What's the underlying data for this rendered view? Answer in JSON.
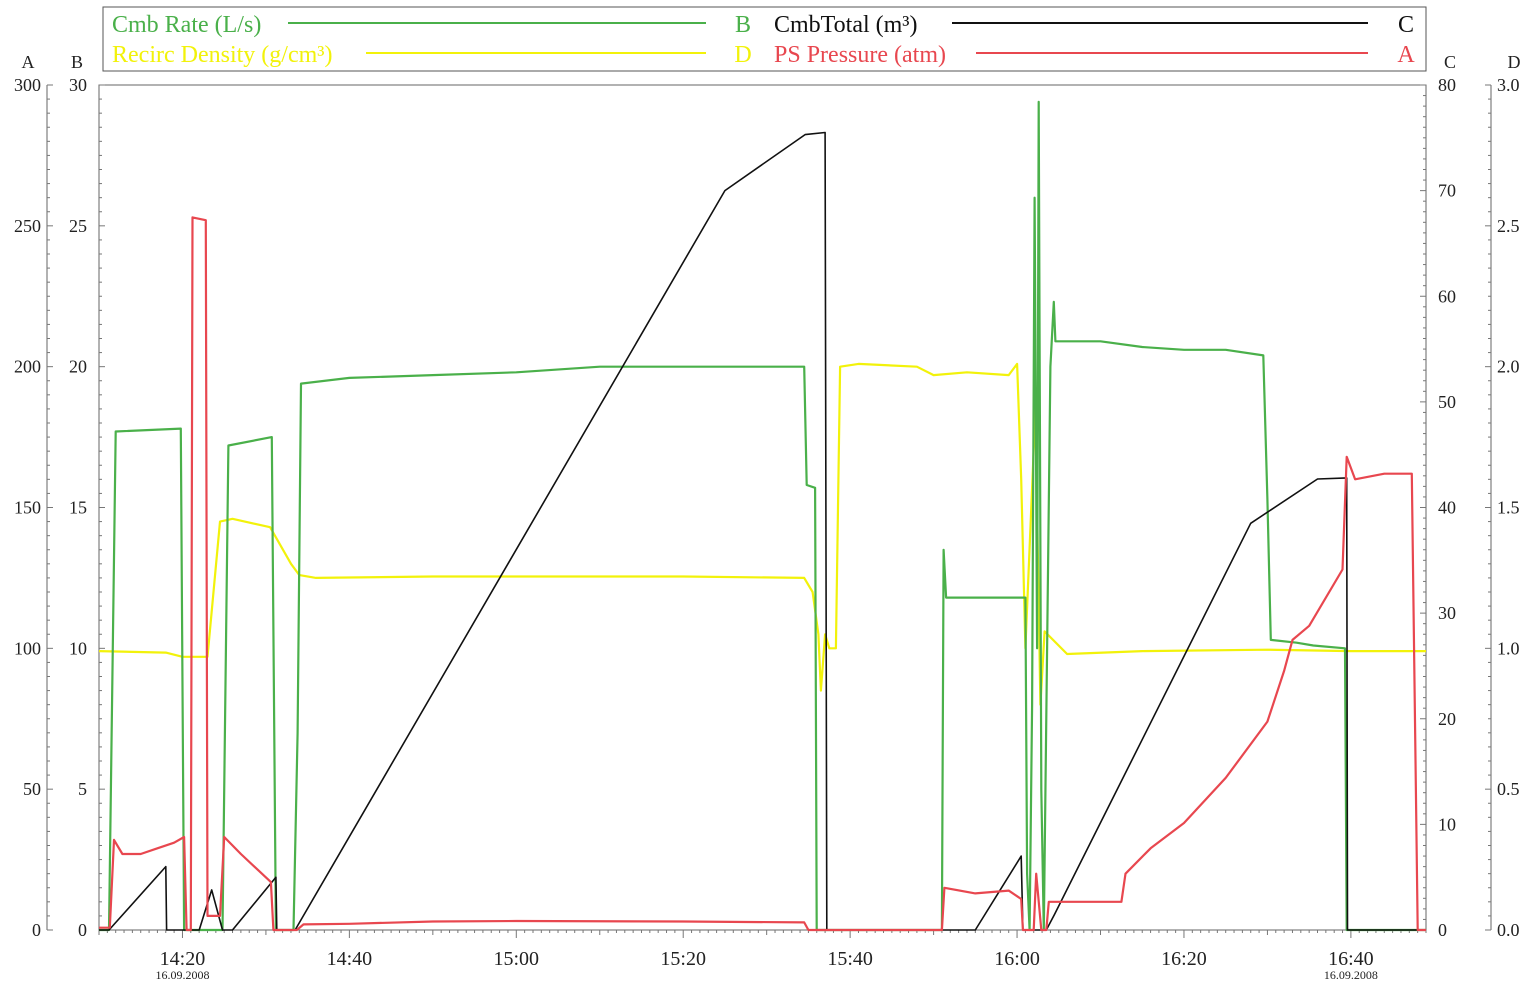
{
  "chart_data": {
    "type": "line",
    "legend": {
      "placement": "top",
      "entries": [
        {
          "label": "Cmb Rate (L/s)",
          "axis": "B",
          "color": "#4ab04a"
        },
        {
          "label": "CmbTotal  (m³)",
          "axis": "C",
          "color": "#111111"
        },
        {
          "label": "Recirc Density (g/cm³)",
          "axis": "D",
          "color": "#f2f20a"
        },
        {
          "label": "PS Pressure (atm)",
          "axis": "A",
          "color": "#e8474f"
        }
      ]
    },
    "axes": {
      "A": {
        "letter": "A",
        "side": "left-outer",
        "range": [
          0,
          300
        ],
        "ticks": [
          "0",
          "50",
          "100",
          "150",
          "200",
          "250",
          "300"
        ]
      },
      "B": {
        "letter": "B",
        "side": "left-inner",
        "range": [
          0,
          30
        ],
        "ticks": [
          "0",
          "5",
          "10",
          "15",
          "20",
          "25",
          "30"
        ]
      },
      "C": {
        "letter": "C",
        "side": "right-inner",
        "range": [
          0,
          80
        ],
        "ticks": [
          "0",
          "10",
          "20",
          "30",
          "40",
          "50",
          "60",
          "70",
          "80"
        ]
      },
      "D": {
        "letter": "D",
        "side": "right-outer",
        "range": [
          0,
          3
        ],
        "ticks": [
          "0.0",
          "0.5",
          "1.0",
          "1.5",
          "2.0",
          "2.5",
          "3.0"
        ]
      }
    },
    "x_axis": {
      "range_minutes": [
        850,
        1009
      ],
      "ticks": [
        {
          "t": 860,
          "label": "14:20",
          "date": "16.09.2008"
        },
        {
          "t": 880,
          "label": "14:40"
        },
        {
          "t": 900,
          "label": "15:00"
        },
        {
          "t": 920,
          "label": "15:20"
        },
        {
          "t": 940,
          "label": "15:40"
        },
        {
          "t": 960,
          "label": "16:00"
        },
        {
          "t": 980,
          "label": "16:20"
        },
        {
          "t": 1000,
          "label": "16:40",
          "date": "16.09.2008"
        }
      ]
    },
    "grid": false,
    "series": [
      {
        "name": "Cmb Rate (L/s)",
        "axis": "B",
        "color": "#4ab04a",
        "points": [
          [
            850,
            0
          ],
          [
            851.2,
            0
          ],
          [
            852,
            17.7
          ],
          [
            859.8,
            17.8
          ],
          [
            860.2,
            0
          ],
          [
            864.8,
            0
          ],
          [
            865.5,
            17.2
          ],
          [
            870.7,
            17.5
          ],
          [
            871.2,
            0
          ],
          [
            873.3,
            0
          ],
          [
            873.8,
            7
          ],
          [
            874.2,
            19.4
          ],
          [
            880,
            19.6
          ],
          [
            890,
            19.7
          ],
          [
            900,
            19.8
          ],
          [
            910,
            20
          ],
          [
            920,
            20
          ],
          [
            934.5,
            20
          ],
          [
            934.8,
            15.8
          ],
          [
            935.8,
            15.7
          ],
          [
            936,
            0
          ],
          [
            951,
            0
          ],
          [
            951.2,
            13.5
          ],
          [
            951.5,
            11.8
          ],
          [
            961,
            11.8
          ],
          [
            961.2,
            2
          ],
          [
            961.5,
            0
          ],
          [
            961.8,
            8
          ],
          [
            962.1,
            26
          ],
          [
            962.4,
            10
          ],
          [
            962.6,
            29.4
          ],
          [
            962.9,
            5
          ],
          [
            963.2,
            0
          ],
          [
            964,
            20
          ],
          [
            964.4,
            22.3
          ],
          [
            964.6,
            20.9
          ],
          [
            970,
            20.9
          ],
          [
            975,
            20.7
          ],
          [
            980,
            20.6
          ],
          [
            985,
            20.6
          ],
          [
            989.5,
            20.4
          ],
          [
            990,
            15.3
          ],
          [
            990.4,
            10.3
          ],
          [
            993.5,
            10.2
          ],
          [
            995.5,
            10.1
          ],
          [
            999.3,
            10
          ],
          [
            999.5,
            0
          ],
          [
            1009,
            0
          ]
        ]
      },
      {
        "name": "CmbTotal  (m³)",
        "axis": "C",
        "color": "#111111",
        "points": [
          [
            850,
            0
          ],
          [
            851.2,
            0
          ],
          [
            858,
            6
          ],
          [
            858.1,
            0
          ],
          [
            862,
            0
          ],
          [
            863.5,
            3.8
          ],
          [
            864.8,
            0
          ],
          [
            866,
            0
          ],
          [
            871.2,
            5
          ],
          [
            871.3,
            0
          ],
          [
            873.5,
            0
          ],
          [
            925,
            70
          ],
          [
            934.6,
            75.3
          ],
          [
            937,
            75.5
          ],
          [
            937.2,
            0
          ],
          [
            955,
            0
          ],
          [
            960.5,
            7
          ],
          [
            960.7,
            0
          ],
          [
            962.5,
            0
          ],
          [
            963.5,
            0
          ],
          [
            964.5,
            1.5
          ],
          [
            988,
            38.5
          ],
          [
            996,
            42.7
          ],
          [
            999.5,
            42.8
          ],
          [
            999.6,
            0
          ],
          [
            1009,
            0
          ]
        ]
      },
      {
        "name": "Recirc Density (g/cm³)",
        "axis": "D",
        "color": "#f2f20a",
        "points": [
          [
            850,
            0.99
          ],
          [
            858,
            0.985
          ],
          [
            860,
            0.97
          ],
          [
            863,
            0.97
          ],
          [
            864.5,
            1.45
          ],
          [
            866,
            1.46
          ],
          [
            870.5,
            1.43
          ],
          [
            873,
            1.3
          ],
          [
            874,
            1.26
          ],
          [
            876,
            1.25
          ],
          [
            890,
            1.255
          ],
          [
            900,
            1.255
          ],
          [
            920,
            1.255
          ],
          [
            934.5,
            1.25
          ],
          [
            935.5,
            1.2
          ],
          [
            936.2,
            1.05
          ],
          [
            936.5,
            0.85
          ],
          [
            937,
            1.05
          ],
          [
            937.5,
            1.0
          ],
          [
            938.3,
            1.0
          ],
          [
            938.8,
            2.0
          ],
          [
            941,
            2.01
          ],
          [
            948,
            2.0
          ],
          [
            950,
            1.97
          ],
          [
            954,
            1.98
          ],
          [
            959,
            1.97
          ],
          [
            960,
            2.01
          ],
          [
            960.5,
            1.6
          ],
          [
            961,
            1.0
          ],
          [
            962.2,
            1.85
          ],
          [
            962.8,
            0.8
          ],
          [
            963.3,
            1.06
          ],
          [
            966,
            0.98
          ],
          [
            975,
            0.99
          ],
          [
            990,
            0.995
          ],
          [
            1000,
            0.99
          ],
          [
            1009,
            0.99
          ]
        ]
      },
      {
        "name": "PS Pressure (atm)",
        "axis": "A",
        "color": "#e8474f",
        "points": [
          [
            850,
            0.8
          ],
          [
            851.3,
            0.8
          ],
          [
            851.8,
            32
          ],
          [
            852.8,
            27
          ],
          [
            855,
            27
          ],
          [
            857,
            29
          ],
          [
            859,
            31
          ],
          [
            860.2,
            33
          ],
          [
            860.5,
            0
          ],
          [
            861,
            0
          ],
          [
            861.2,
            253
          ],
          [
            862.8,
            252
          ],
          [
            863,
            5
          ],
          [
            864.5,
            5
          ],
          [
            865,
            33
          ],
          [
            867,
            27
          ],
          [
            870.6,
            17
          ],
          [
            870.9,
            0
          ],
          [
            873.7,
            0
          ],
          [
            874.5,
            2
          ],
          [
            880,
            2.2
          ],
          [
            890,
            3
          ],
          [
            900,
            3.2
          ],
          [
            920,
            3
          ],
          [
            934.5,
            2.7
          ],
          [
            935,
            0
          ],
          [
            951,
            0
          ],
          [
            951.3,
            15
          ],
          [
            955,
            13
          ],
          [
            959,
            14
          ],
          [
            960.5,
            11
          ],
          [
            960.7,
            0
          ],
          [
            962,
            0
          ],
          [
            962.3,
            20
          ],
          [
            962.9,
            0
          ],
          [
            963.5,
            0
          ],
          [
            963.8,
            10
          ],
          [
            972.5,
            10
          ],
          [
            973,
            20
          ],
          [
            976,
            29
          ],
          [
            980,
            38
          ],
          [
            985,
            54
          ],
          [
            990,
            74
          ],
          [
            992,
            92
          ],
          [
            993,
            103
          ],
          [
            995,
            108
          ],
          [
            999,
            128
          ],
          [
            999.5,
            168
          ],
          [
            1000.5,
            160
          ],
          [
            1004,
            162
          ],
          [
            1007.3,
            162
          ],
          [
            1008,
            0
          ],
          [
            1009,
            0
          ]
        ]
      }
    ]
  }
}
